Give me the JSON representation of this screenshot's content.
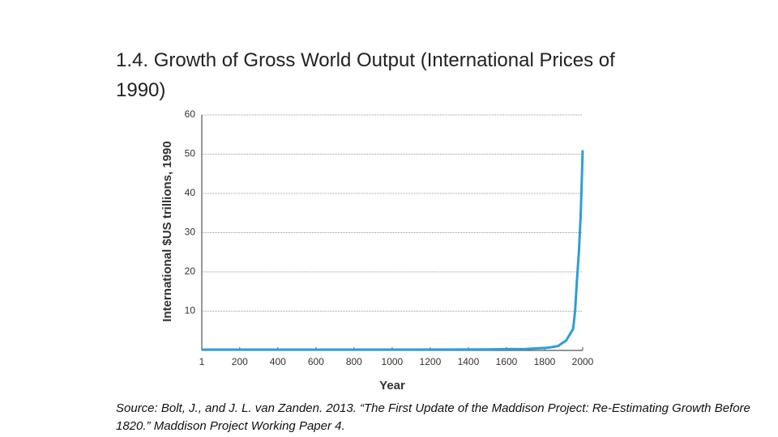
{
  "chart_data": {
    "type": "line",
    "title": "1.4.  Growth of Gross World Output (International Prices of 1990)",
    "note": "Source: Bolt, J., and J. L. van Zanden. 2013. “The First Update of the Maddison Project: Re-Estimating Growth Before 1820.” Maddison Project Working Paper 4.",
    "x_label": "Year",
    "y_label": "International $US trillions, 1990",
    "x": [
      1,
      1000,
      1500,
      1600,
      1700,
      1820,
      1870,
      1913,
      1950,
      1960,
      1970,
      1980,
      1990,
      2000
    ],
    "values": [
      0.2,
      0.2,
      0.25,
      0.33,
      0.37,
      0.7,
      1.1,
      2.5,
      5.5,
      10,
      18,
      25,
      35,
      51
    ],
    "color": "#2e9fd4",
    "xlim": [
      1,
      2000
    ],
    "xticks": [
      1,
      200,
      400,
      600,
      800,
      1000,
      1200,
      1400,
      1600,
      1800,
      2000
    ],
    "ylim": [
      0,
      60
    ],
    "yticks": [
      10,
      20,
      30,
      40,
      50,
      60
    ],
    "grid": true
  }
}
